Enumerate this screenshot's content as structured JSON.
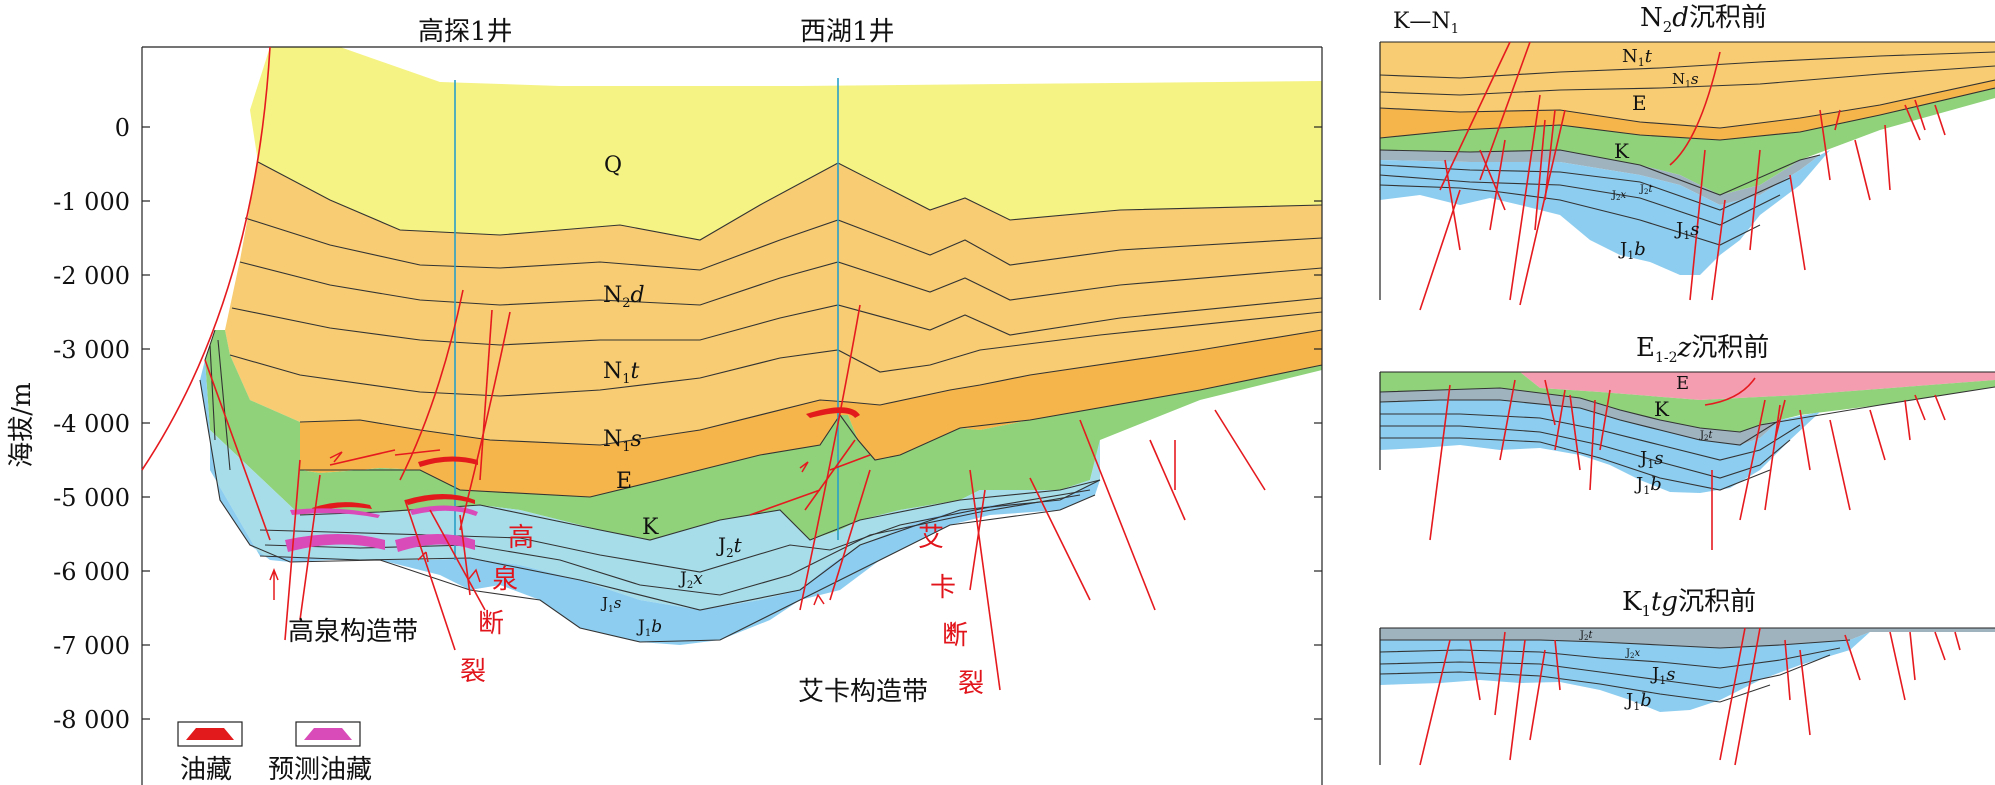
{
  "wells": {
    "w1": "高探1井",
    "w2": "西湖1井"
  },
  "yaxis": {
    "label": "海拔/m",
    "ticks": [
      "0",
      "-1 000",
      "-2 000",
      "-3 000",
      "-4 000",
      "-5 000",
      "-6 000",
      "-7 000",
      "-8 000"
    ]
  },
  "layers": {
    "Q": "Q",
    "N2d": "N",
    "N2d_sub": "2",
    "N2d_it": "d",
    "N1t": "N",
    "N1t_sub": "1",
    "N1t_it": "t",
    "N1s": "N",
    "N1s_sub": "1",
    "N1s_it": "s",
    "E": "E",
    "K": "K",
    "J2t": "J",
    "J2t_sub": "2",
    "J2t_it": "t",
    "J2x": "J",
    "J2x_sub": "2",
    "J2x_it": "x",
    "J1s": "J",
    "J1s_sub": "1",
    "J1s_it": "s",
    "J1b": "J",
    "J1b_sub": "1",
    "J1b_it": "b"
  },
  "zones": {
    "gaoquan": "高泉构造带",
    "aika": "艾卡构造带"
  },
  "faults": {
    "gaoquan": [
      "高",
      "泉",
      "断",
      "裂"
    ],
    "aika": [
      "艾",
      "卡",
      "断",
      "裂"
    ]
  },
  "legend": {
    "oil": "油藏",
    "predicted": "预测油藏"
  },
  "colors": {
    "Q": "#f5f383",
    "N": "#f7cc72",
    "E": "#f6b54a",
    "K": "#8fd27a",
    "J2": "#a6dde9",
    "J1": "#8dcdef",
    "pink": "#f49db0",
    "grey": "#9fb3bf",
    "fault": "#e51a1f",
    "oil": "#e31a1c",
    "predicted": "#d94bb8"
  },
  "panels": {
    "p1": {
      "title_a": "N",
      "title_sub": "2",
      "title_it": "d",
      "title_b": "沉积前",
      "corner_a": "K—N",
      "corner_sub": "1",
      "labels": {
        "N1t": "t",
        "N1s": "s",
        "E": "E",
        "K": "K",
        "J2x": "x",
        "J2t": "t",
        "J1s": "s",
        "J1b": "b"
      }
    },
    "p2": {
      "title_a": "E",
      "title_sub": "1-2",
      "title_it": "z",
      "title_b": "沉积前",
      "labels": {
        "E": "E",
        "K": "K",
        "J2t": "t",
        "J1s": "s",
        "J1b": "b"
      }
    },
    "p3": {
      "title_a": "K",
      "title_sub": "1",
      "title_it": "tg",
      "title_b": "沉积前",
      "labels": {
        "J2t": "t",
        "J2x": "x",
        "J1s": "s",
        "J1b": "b"
      }
    }
  }
}
